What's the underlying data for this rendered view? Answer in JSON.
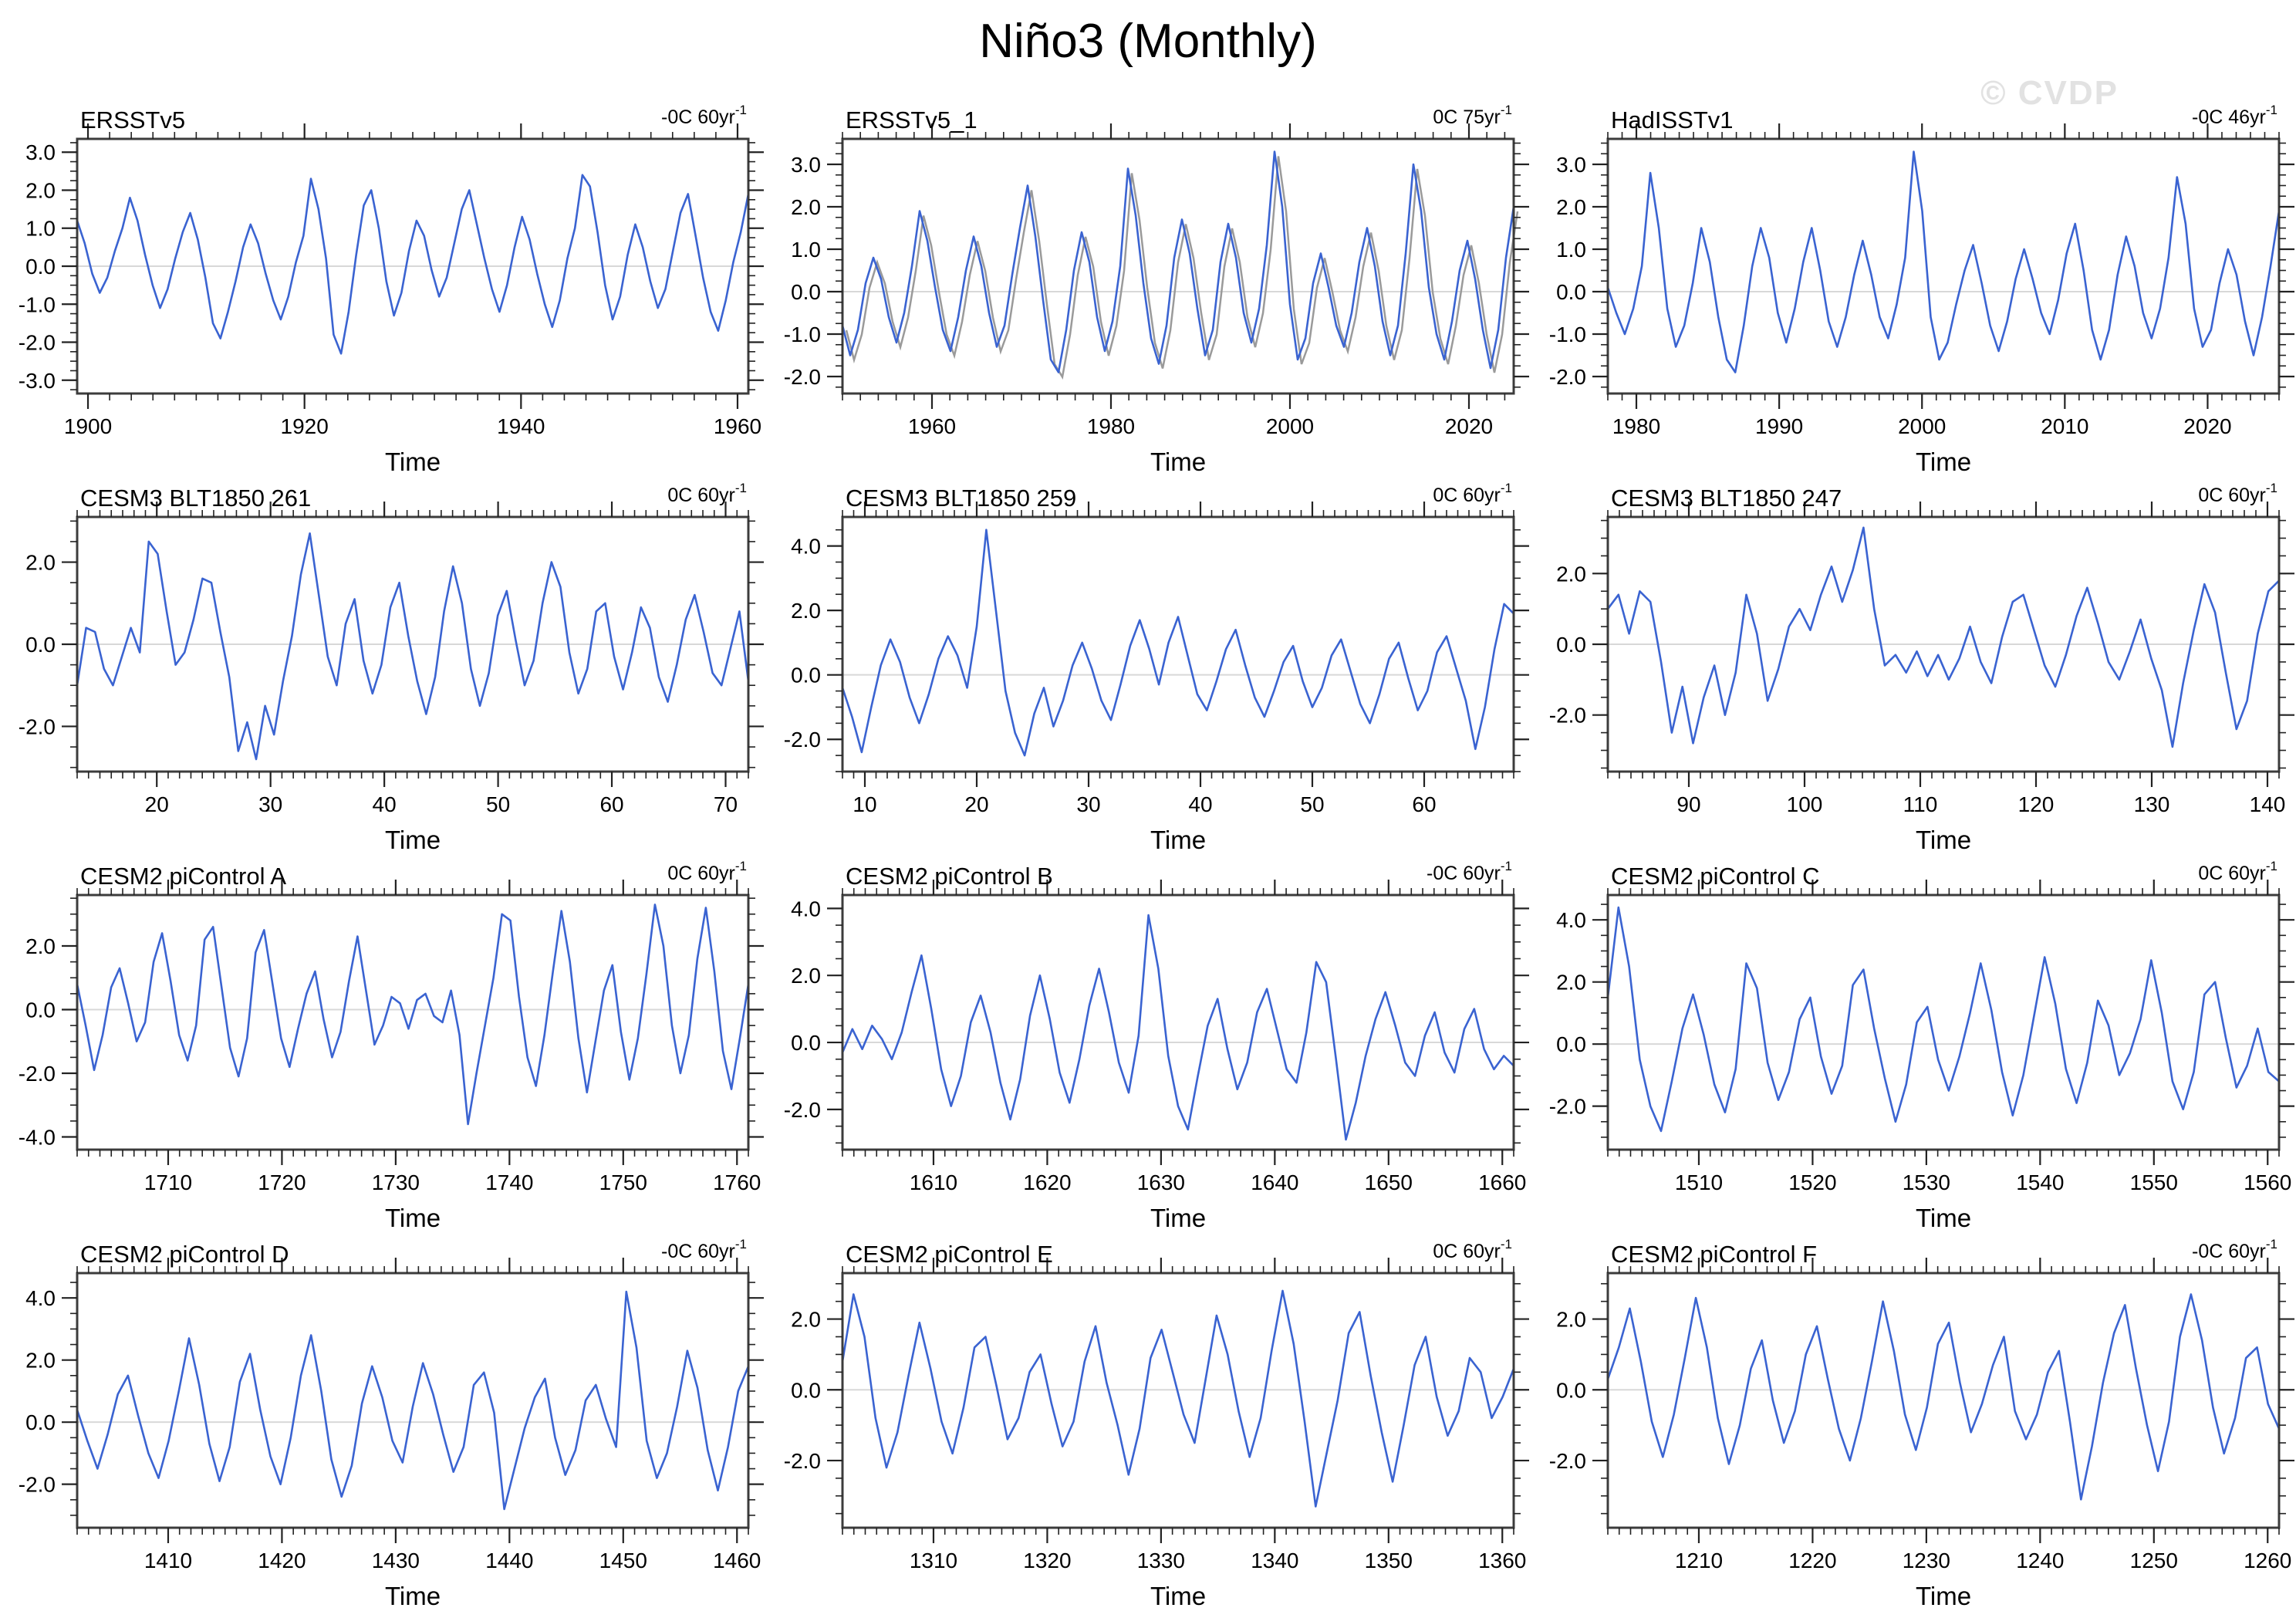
{
  "page": {
    "title": "Niño3 (Monthly)",
    "watermark": "© CVDP"
  },
  "colors": {
    "line": "#3a63d1",
    "shadow": "#9a9a9a",
    "zero": "#d8d8d8",
    "axis": "#3c3c3c",
    "tick": "#222222",
    "watermark": "#e2e2e2"
  },
  "chart_data": [
    {
      "type": "line",
      "title": "ERSSTv5",
      "trend": "-0C 60yr",
      "trend_exp": "-1",
      "xlabel": "Time",
      "xlim": [
        1899,
        1961
      ],
      "xticks": [
        1900,
        1920,
        1940,
        1960
      ],
      "xminor": 2,
      "ylim": [
        -3.35,
        3.35
      ],
      "yticks": [
        3.0,
        2.0,
        1.0,
        0.0,
        -1.0,
        -2.0,
        -3.0
      ],
      "yminor": 0.25,
      "shadow": false,
      "values": [
        1.2,
        0.6,
        -0.2,
        -0.7,
        -0.3,
        0.4,
        1.0,
        1.8,
        1.2,
        0.3,
        -0.5,
        -1.1,
        -0.6,
        0.2,
        0.9,
        1.4,
        0.7,
        -0.3,
        -1.5,
        -1.9,
        -1.2,
        -0.4,
        0.5,
        1.1,
        0.6,
        -0.2,
        -0.9,
        -1.4,
        -0.8,
        0.1,
        0.8,
        2.3,
        1.5,
        0.2,
        -1.8,
        -2.3,
        -1.2,
        0.3,
        1.6,
        2.0,
        1.0,
        -0.4,
        -1.3,
        -0.7,
        0.4,
        1.2,
        0.8,
        -0.1,
        -0.8,
        -0.3,
        0.6,
        1.5,
        2.0,
        1.1,
        0.2,
        -0.6,
        -1.2,
        -0.5,
        0.5,
        1.3,
        0.7,
        -0.2,
        -1.0,
        -1.6,
        -0.9,
        0.2,
        1.0,
        2.4,
        2.1,
        0.9,
        -0.5,
        -1.4,
        -0.8,
        0.3,
        1.1,
        0.5,
        -0.4,
        -1.1,
        -0.6,
        0.4,
        1.4,
        1.9,
        0.8,
        -0.3,
        -1.2,
        -1.7,
        -0.9,
        0.1,
        0.9,
        1.9
      ]
    },
    {
      "type": "line",
      "title": "ERSSTv5_1",
      "trend": "0C 75yr",
      "trend_exp": "-1",
      "xlabel": "Time",
      "xlim": [
        1950,
        2025
      ],
      "xticks": [
        1960,
        1980,
        2000,
        2020
      ],
      "xminor": 2,
      "ylim": [
        -2.4,
        3.6
      ],
      "yticks": [
        3.0,
        2.0,
        1.0,
        0.0,
        -1.0,
        -2.0
      ],
      "yminor": 0.25,
      "shadow": true,
      "values": [
        -0.8,
        -1.5,
        -0.9,
        0.2,
        0.8,
        0.3,
        -0.6,
        -1.2,
        -0.5,
        0.6,
        1.9,
        1.2,
        0.1,
        -0.9,
        -1.4,
        -0.6,
        0.5,
        1.3,
        0.6,
        -0.5,
        -1.3,
        -0.8,
        0.4,
        1.5,
        2.5,
        1.3,
        -0.2,
        -1.6,
        -1.9,
        -0.9,
        0.5,
        1.4,
        0.7,
        -0.6,
        -1.4,
        -0.7,
        0.6,
        2.9,
        1.8,
        0.2,
        -1.1,
        -1.7,
        -0.8,
        0.8,
        1.7,
        0.9,
        -0.4,
        -1.5,
        -0.9,
        0.7,
        1.6,
        0.8,
        -0.5,
        -1.2,
        -0.4,
        1.1,
        3.3,
        2.0,
        -0.3,
        -1.6,
        -1.1,
        0.2,
        0.9,
        0.1,
        -0.8,
        -1.3,
        -0.5,
        0.7,
        1.5,
        0.6,
        -0.7,
        -1.5,
        -0.8,
        0.9,
        3.0,
        1.9,
        0.1,
        -1.0,
        -1.6,
        -0.7,
        0.5,
        1.2,
        0.3,
        -0.9,
        -1.8,
        -0.9,
        0.8,
        2.0
      ]
    },
    {
      "type": "line",
      "title": "HadISSTv1",
      "trend": "-0C 46yr",
      "trend_exp": "-1",
      "xlabel": "Time",
      "xlim": [
        1978,
        2025
      ],
      "xticks": [
        1980,
        1990,
        2000,
        2010,
        2020
      ],
      "xminor": 1,
      "ylim": [
        -2.4,
        3.6
      ],
      "yticks": [
        3.0,
        2.0,
        1.0,
        0.0,
        -1.0,
        -2.0
      ],
      "yminor": 0.25,
      "shadow": false,
      "values": [
        0.1,
        -0.5,
        -1.0,
        -0.4,
        0.6,
        2.8,
        1.5,
        -0.4,
        -1.3,
        -0.8,
        0.2,
        1.5,
        0.7,
        -0.6,
        -1.6,
        -1.9,
        -0.8,
        0.6,
        1.5,
        0.8,
        -0.5,
        -1.2,
        -0.4,
        0.7,
        1.5,
        0.5,
        -0.7,
        -1.3,
        -0.6,
        0.4,
        1.2,
        0.4,
        -0.6,
        -1.1,
        -0.3,
        0.8,
        3.3,
        1.9,
        -0.6,
        -1.6,
        -1.2,
        -0.3,
        0.5,
        1.1,
        0.2,
        -0.8,
        -1.4,
        -0.7,
        0.3,
        1.0,
        0.3,
        -0.5,
        -1.0,
        -0.2,
        0.9,
        1.6,
        0.5,
        -0.9,
        -1.6,
        -0.9,
        0.4,
        1.3,
        0.6,
        -0.5,
        -1.1,
        -0.4,
        0.8,
        2.7,
        1.6,
        -0.4,
        -1.3,
        -0.9,
        0.2,
        1.0,
        0.4,
        -0.7,
        -1.5,
        -0.6,
        0.6,
        1.9
      ]
    },
    {
      "type": "line",
      "title": "CESM3 BLT1850 261",
      "trend": "0C 60yr",
      "trend_exp": "-1",
      "xlabel": "Time",
      "xlim": [
        13,
        72
      ],
      "xticks": [
        20,
        30,
        40,
        50,
        60,
        70
      ],
      "xminor": 1,
      "ylim": [
        -3.1,
        3.1
      ],
      "yticks": [
        2.0,
        0.0,
        -2.0
      ],
      "yminor": 0.5,
      "shadow": false,
      "values": [
        -1.0,
        0.4,
        0.3,
        -0.6,
        -1.0,
        -0.3,
        0.4,
        -0.2,
        2.5,
        2.2,
        0.8,
        -0.5,
        -0.2,
        0.6,
        1.6,
        1.5,
        0.3,
        -0.8,
        -2.6,
        -1.9,
        -2.8,
        -1.5,
        -2.2,
        -0.9,
        0.2,
        1.7,
        2.7,
        1.2,
        -0.3,
        -1.0,
        0.5,
        1.1,
        -0.4,
        -1.2,
        -0.5,
        0.9,
        1.5,
        0.2,
        -0.9,
        -1.7,
        -0.8,
        0.8,
        1.9,
        1.0,
        -0.6,
        -1.5,
        -0.7,
        0.7,
        1.3,
        0.1,
        -1.0,
        -0.4,
        1.0,
        2.0,
        1.4,
        -0.2,
        -1.2,
        -0.6,
        0.8,
        1.0,
        -0.3,
        -1.1,
        -0.2,
        0.9,
        0.4,
        -0.8,
        -1.4,
        -0.5,
        0.6,
        1.2,
        0.3,
        -0.7,
        -1.0,
        -0.1,
        0.8,
        -0.9
      ]
    },
    {
      "type": "line",
      "title": "CESM3 BLT1850 259",
      "trend": "0C 60yr",
      "trend_exp": "-1",
      "xlabel": "Time",
      "xlim": [
        8,
        68
      ],
      "xticks": [
        10,
        20,
        30,
        40,
        50,
        60
      ],
      "xminor": 1,
      "ylim": [
        -3.0,
        4.9
      ],
      "yticks": [
        4.0,
        2.0,
        0.0,
        -2.0
      ],
      "yminor": 0.5,
      "shadow": false,
      "values": [
        -0.4,
        -1.3,
        -2.4,
        -1.0,
        0.3,
        1.1,
        0.4,
        -0.7,
        -1.5,
        -0.6,
        0.5,
        1.2,
        0.6,
        -0.4,
        1.5,
        4.5,
        2.0,
        -0.5,
        -1.8,
        -2.5,
        -1.2,
        -0.4,
        -1.6,
        -0.8,
        0.3,
        1.0,
        0.2,
        -0.8,
        -1.4,
        -0.3,
        0.9,
        1.7,
        0.8,
        -0.3,
        1.0,
        1.8,
        0.6,
        -0.6,
        -1.1,
        -0.2,
        0.8,
        1.4,
        0.3,
        -0.7,
        -1.3,
        -0.5,
        0.4,
        0.9,
        -0.2,
        -1.0,
        -0.4,
        0.6,
        1.1,
        0.1,
        -0.9,
        -1.5,
        -0.6,
        0.5,
        1.0,
        -0.1,
        -1.1,
        -0.5,
        0.7,
        1.2,
        0.2,
        -0.8,
        -2.3,
        -1.0,
        0.8,
        2.2,
        1.9
      ]
    },
    {
      "type": "line",
      "title": "CESM3 BLT1850 247",
      "trend": "0C 60yr",
      "trend_exp": "-1",
      "xlabel": "Time",
      "xlim": [
        83,
        141
      ],
      "xticks": [
        90,
        100,
        110,
        120,
        130,
        140
      ],
      "xminor": 1,
      "ylim": [
        -3.6,
        3.6
      ],
      "yticks": [
        2.0,
        0.0,
        -2.0
      ],
      "yminor": 0.5,
      "shadow": false,
      "values": [
        1.0,
        1.4,
        0.3,
        1.5,
        1.2,
        -0.5,
        -2.5,
        -1.2,
        -2.8,
        -1.5,
        -0.6,
        -2.0,
        -0.8,
        1.4,
        0.3,
        -1.6,
        -0.7,
        0.5,
        1.0,
        0.4,
        1.4,
        2.2,
        1.2,
        2.1,
        3.3,
        1.0,
        -0.6,
        -0.3,
        -0.8,
        -0.2,
        -0.9,
        -0.3,
        -1.0,
        -0.4,
        0.5,
        -0.5,
        -1.1,
        0.2,
        1.2,
        1.4,
        0.4,
        -0.6,
        -1.2,
        -0.3,
        0.8,
        1.6,
        0.6,
        -0.5,
        -1.0,
        -0.2,
        0.7,
        -0.4,
        -1.3,
        -2.9,
        -1.1,
        0.4,
        1.7,
        0.9,
        -0.8,
        -2.4,
        -1.6,
        0.3,
        1.5,
        1.8
      ]
    },
    {
      "type": "line",
      "title": "CESM2 piControl A",
      "trend": "0C 60yr",
      "trend_exp": "-1",
      "xlabel": "Time",
      "xlim": [
        1702,
        1761
      ],
      "xticks": [
        1710,
        1720,
        1730,
        1740,
        1750,
        1760
      ],
      "xminor": 1,
      "ylim": [
        -4.4,
        3.6
      ],
      "yticks": [
        2.0,
        0.0,
        -2.0,
        -4.0
      ],
      "yminor": 0.5,
      "shadow": false,
      "values": [
        0.8,
        -0.5,
        -1.9,
        -0.8,
        0.7,
        1.3,
        0.2,
        -1.0,
        -0.4,
        1.5,
        2.4,
        0.9,
        -0.8,
        -1.6,
        -0.5,
        2.2,
        2.6,
        0.7,
        -1.2,
        -2.1,
        -0.9,
        1.8,
        2.5,
        0.8,
        -0.9,
        -1.8,
        -0.6,
        0.5,
        1.2,
        -0.3,
        -1.5,
        -0.7,
        0.9,
        2.3,
        0.6,
        -1.1,
        -0.5,
        0.4,
        0.2,
        -0.6,
        0.3,
        0.5,
        -0.2,
        -0.4,
        0.6,
        -0.8,
        -3.6,
        -2.0,
        -0.5,
        1.0,
        3.0,
        2.8,
        0.4,
        -1.5,
        -2.4,
        -0.8,
        1.2,
        3.1,
        1.5,
        -0.9,
        -2.6,
        -1.0,
        0.6,
        1.4,
        -0.7,
        -2.2,
        -0.9,
        1.1,
        3.3,
        2.0,
        -0.5,
        -2.0,
        -0.8,
        1.6,
        3.2,
        1.2,
        -1.3,
        -2.5,
        -0.9,
        0.8
      ]
    },
    {
      "type": "line",
      "title": "CESM2 piControl B",
      "trend": "-0C 60yr",
      "trend_exp": "-1",
      "xlabel": "Time",
      "xlim": [
        1602,
        1661
      ],
      "xticks": [
        1610,
        1620,
        1630,
        1640,
        1650,
        1660
      ],
      "xminor": 1,
      "ylim": [
        -3.2,
        4.4
      ],
      "yticks": [
        4.0,
        2.0,
        0.0,
        -2.0
      ],
      "yminor": 0.5,
      "shadow": false,
      "values": [
        -0.3,
        0.4,
        -0.2,
        0.5,
        0.1,
        -0.5,
        0.3,
        1.5,
        2.6,
        1.0,
        -0.8,
        -1.9,
        -1.0,
        0.6,
        1.4,
        0.3,
        -1.2,
        -2.3,
        -1.1,
        0.8,
        2.0,
        0.7,
        -0.9,
        -1.8,
        -0.5,
        1.1,
        2.2,
        0.9,
        -0.6,
        -1.5,
        0.2,
        3.8,
        2.2,
        -0.4,
        -1.9,
        -2.6,
        -1.0,
        0.5,
        1.3,
        -0.2,
        -1.4,
        -0.6,
        0.9,
        1.6,
        0.4,
        -0.8,
        -1.2,
        0.3,
        2.4,
        1.8,
        -0.5,
        -2.9,
        -1.8,
        -0.4,
        0.7,
        1.5,
        0.5,
        -0.6,
        -1.0,
        0.2,
        0.9,
        -0.3,
        -0.9,
        0.4,
        1.0,
        -0.2,
        -0.8,
        -0.4,
        -0.7
      ]
    },
    {
      "type": "line",
      "title": "CESM2 piControl C",
      "trend": "0C 60yr",
      "trend_exp": "-1",
      "xlabel": "Time",
      "xlim": [
        1502,
        1561
      ],
      "xticks": [
        1510,
        1520,
        1530,
        1540,
        1550,
        1560
      ],
      "xminor": 1,
      "ylim": [
        -3.4,
        4.8
      ],
      "yticks": [
        4.0,
        2.0,
        0.0,
        -2.0
      ],
      "yminor": 0.5,
      "shadow": false,
      "values": [
        1.5,
        4.4,
        2.5,
        -0.5,
        -2.0,
        -2.8,
        -1.2,
        0.5,
        1.6,
        0.3,
        -1.3,
        -2.2,
        -0.8,
        2.6,
        1.8,
        -0.6,
        -1.8,
        -0.9,
        0.8,
        1.5,
        -0.4,
        -1.6,
        -0.7,
        1.9,
        2.4,
        0.5,
        -1.1,
        -2.5,
        -1.3,
        0.7,
        1.2,
        -0.5,
        -1.5,
        -0.4,
        1.0,
        2.6,
        1.1,
        -0.9,
        -2.3,
        -1.0,
        0.9,
        2.8,
        1.3,
        -0.8,
        -1.9,
        -0.6,
        1.4,
        0.6,
        -1.0,
        -0.3,
        0.8,
        2.7,
        1.0,
        -1.2,
        -2.1,
        -0.9,
        1.6,
        2.0,
        0.2,
        -1.4,
        -0.7,
        0.5,
        -0.9,
        -1.2
      ]
    },
    {
      "type": "line",
      "title": "CESM2 piControl D",
      "trend": "-0C 60yr",
      "trend_exp": "-1",
      "xlabel": "Time",
      "xlim": [
        1402,
        1461
      ],
      "xticks": [
        1410,
        1420,
        1430,
        1440,
        1450,
        1460
      ],
      "xminor": 1,
      "ylim": [
        -3.4,
        4.8
      ],
      "yticks": [
        4.0,
        2.0,
        0.0,
        -2.0
      ],
      "yminor": 0.5,
      "shadow": false,
      "values": [
        0.4,
        -0.6,
        -1.5,
        -0.4,
        0.9,
        1.5,
        0.2,
        -1.0,
        -1.8,
        -0.6,
        1.0,
        2.7,
        1.2,
        -0.7,
        -1.9,
        -0.8,
        1.3,
        2.2,
        0.4,
        -1.1,
        -2.0,
        -0.5,
        1.5,
        2.8,
        1.0,
        -1.2,
        -2.4,
        -1.4,
        0.6,
        1.8,
        0.8,
        -0.6,
        -1.3,
        0.5,
        1.9,
        0.9,
        -0.4,
        -1.6,
        -0.8,
        1.2,
        1.6,
        0.3,
        -2.8,
        -1.5,
        -0.2,
        0.8,
        1.4,
        -0.5,
        -1.7,
        -0.9,
        0.7,
        1.2,
        0.1,
        -0.8,
        4.2,
        2.4,
        -0.6,
        -1.8,
        -1.0,
        0.5,
        2.3,
        1.1,
        -0.9,
        -2.2,
        -0.8,
        1.0,
        1.8
      ]
    },
    {
      "type": "line",
      "title": "CESM2 piControl E",
      "trend": "0C 60yr",
      "trend_exp": "-1",
      "xlabel": "Time",
      "xlim": [
        1302,
        1361
      ],
      "xticks": [
        1310,
        1320,
        1330,
        1340,
        1350,
        1360
      ],
      "xminor": 1,
      "ylim": [
        -3.9,
        3.3
      ],
      "yticks": [
        2.0,
        0.0,
        -2.0
      ],
      "yminor": 0.5,
      "shadow": false,
      "values": [
        0.8,
        2.7,
        1.5,
        -0.8,
        -2.2,
        -1.2,
        0.4,
        1.9,
        0.6,
        -0.9,
        -1.8,
        -0.5,
        1.2,
        1.5,
        0.1,
        -1.4,
        -0.8,
        0.5,
        1.0,
        -0.4,
        -1.6,
        -0.9,
        0.8,
        1.8,
        0.2,
        -1.0,
        -2.4,
        -1.1,
        0.9,
        1.7,
        0.5,
        -0.7,
        -1.5,
        0.3,
        2.1,
        1.0,
        -0.6,
        -1.9,
        -0.8,
        1.1,
        2.8,
        1.3,
        -0.9,
        -3.3,
        -1.8,
        -0.3,
        1.6,
        2.2,
        0.4,
        -1.2,
        -2.6,
        -1.0,
        0.7,
        1.5,
        -0.2,
        -1.3,
        -0.6,
        0.9,
        0.5,
        -0.8,
        -0.2,
        0.6
      ]
    },
    {
      "type": "line",
      "title": "CESM2 piControl F",
      "trend": "-0C 60yr",
      "trend_exp": "-1",
      "xlabel": "Time",
      "xlim": [
        1202,
        1261
      ],
      "xticks": [
        1210,
        1220,
        1230,
        1240,
        1250,
        1260
      ],
      "xminor": 1,
      "ylim": [
        -3.9,
        3.3
      ],
      "yticks": [
        2.0,
        0.0,
        -2.0
      ],
      "yminor": 0.5,
      "shadow": false,
      "values": [
        0.3,
        1.2,
        2.3,
        0.8,
        -0.9,
        -1.9,
        -0.7,
        0.9,
        2.6,
        1.2,
        -0.8,
        -2.1,
        -1.0,
        0.6,
        1.4,
        -0.3,
        -1.5,
        -0.6,
        1.0,
        1.8,
        0.3,
        -1.1,
        -2.0,
        -0.8,
        0.8,
        2.5,
        1.1,
        -0.7,
        -1.7,
        -0.5,
        1.3,
        1.9,
        0.2,
        -1.2,
        -0.4,
        0.7,
        1.5,
        -0.6,
        -1.4,
        -0.7,
        0.5,
        1.1,
        -0.9,
        -3.1,
        -1.6,
        0.2,
        1.6,
        2.4,
        0.6,
        -1.0,
        -2.3,
        -0.9,
        1.5,
        2.7,
        1.4,
        -0.5,
        -1.8,
        -0.8,
        0.9,
        1.2,
        -0.4,
        -1.1
      ]
    }
  ]
}
